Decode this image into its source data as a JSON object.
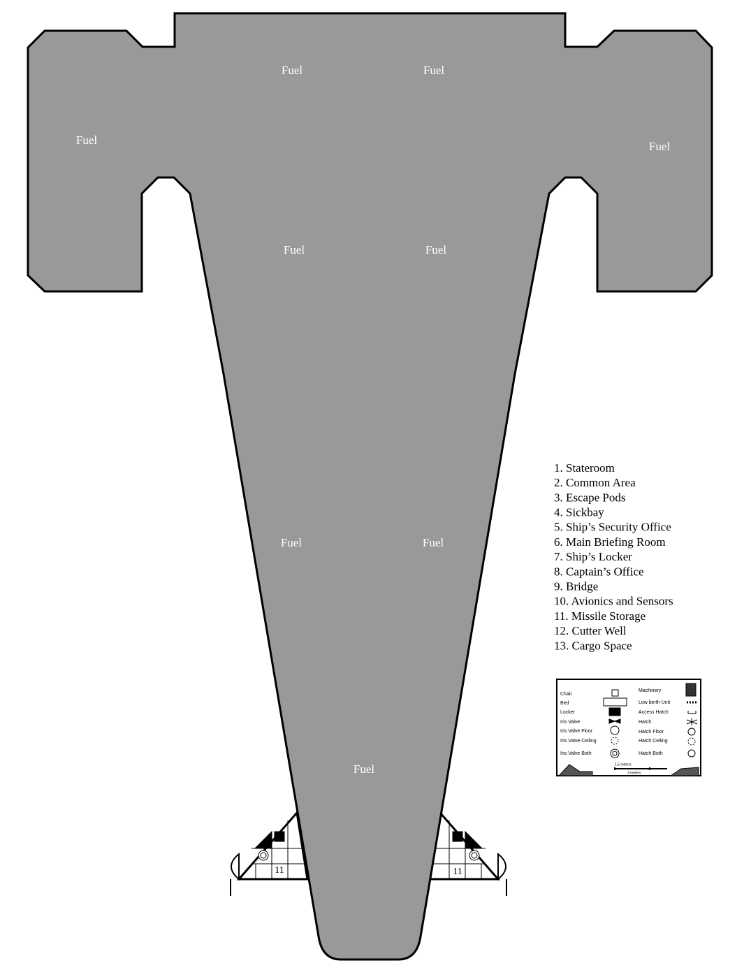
{
  "fuel_labels": [
    "Fuel",
    "Fuel",
    "Fuel",
    "Fuel",
    "Fuel",
    "Fuel",
    "Fuel",
    "Fuel",
    "Fuel"
  ],
  "room_key": [
    "1. Stateroom",
    "2. Common Area",
    "3. Escape Pods",
    "4. Sickbay",
    "5. Ship’s Security Office",
    "6. Main Briefing Room",
    "7. Ship’s Locker",
    "8. Captain’s Office",
    "9. Bridge",
    "10. Avionics and Sensors",
    "11. Missile Storage",
    "12. Cutter Well",
    "13. Cargo Space"
  ],
  "symbol_key": {
    "left": [
      "Chair",
      "Bed",
      "Locker",
      "Iris Valve",
      "Iris Valve Floor",
      "Iris Valve Ceiling",
      "Iris Valve Both"
    ],
    "right_title": "Machinery",
    "right": [
      "Low berth Unit",
      "Access Hatch",
      "Hatch",
      "Hatch Floor",
      "Hatch Ceiling",
      "Hatch Both"
    ],
    "scale": [
      "1.5 meters",
      "3 meters"
    ]
  },
  "bay_labels": [
    "11",
    "11"
  ]
}
